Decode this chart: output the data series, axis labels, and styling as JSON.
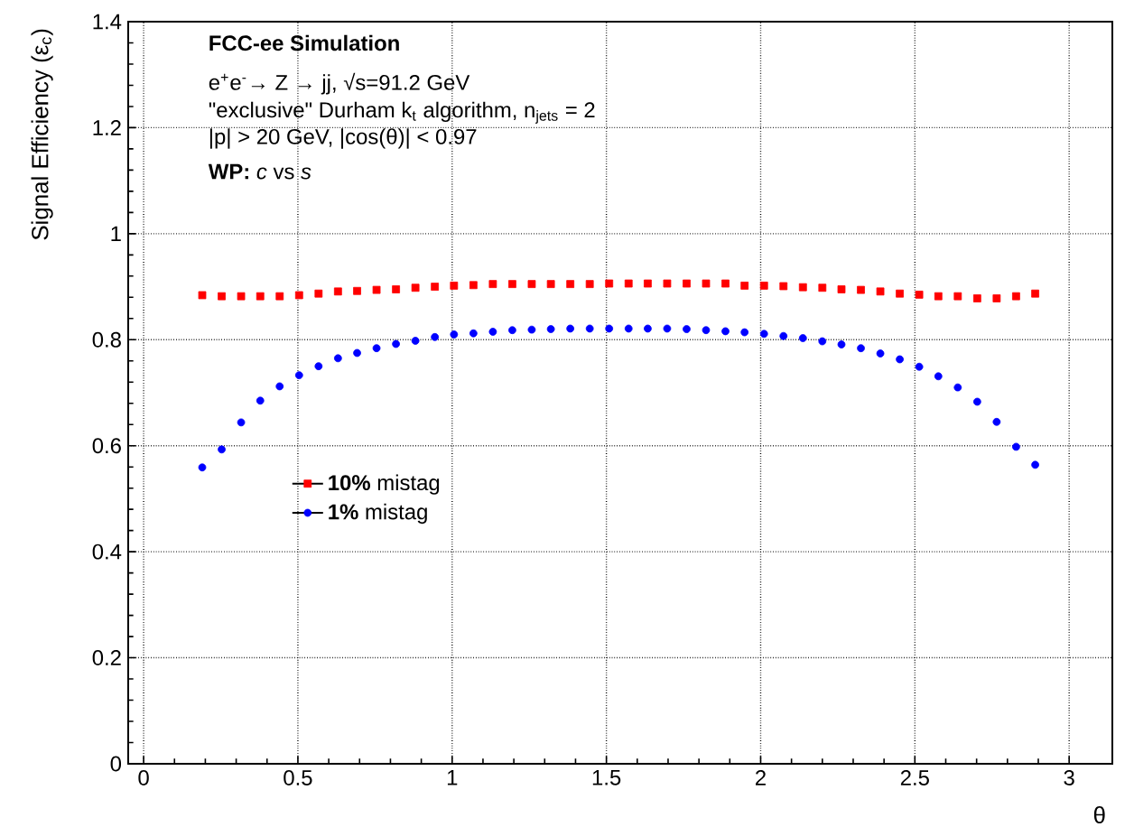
{
  "chart_data": {
    "type": "scatter",
    "title": "FCC-ee Simulation",
    "annotations": [
      "e$^{+}$e$^{-}$→ Z → jj, √s=91.2 GeV",
      "\"exclusive\" Durham k$_{t}$ algorithm, n$_{jets}$ = 2",
      "|p| > 20 GeV, |cos(θ)| < 0.97",
      "**WP:** *c* vs *s*"
    ],
    "xlabel": "θ",
    "ylabel": "Signal Efficiency (ε$_{c}$)",
    "x": [
      0.19,
      0.253,
      0.316,
      0.378,
      0.441,
      0.504,
      0.567,
      0.63,
      0.692,
      0.755,
      0.818,
      0.881,
      0.944,
      1.006,
      1.069,
      1.132,
      1.195,
      1.258,
      1.32,
      1.383,
      1.446,
      1.509,
      1.572,
      1.634,
      1.697,
      1.76,
      1.823,
      1.886,
      1.948,
      2.011,
      2.074,
      2.137,
      2.2,
      2.262,
      2.325,
      2.388,
      2.451,
      2.514,
      2.576,
      2.639,
      2.702,
      2.765,
      2.828,
      2.89
    ],
    "series": [
      {
        "name": "**10%** mistag",
        "color": "#ff0000",
        "marker": "square",
        "values": [
          0.884,
          0.882,
          0.882,
          0.882,
          0.882,
          0.884,
          0.887,
          0.891,
          0.892,
          0.894,
          0.895,
          0.898,
          0.9,
          0.902,
          0.903,
          0.905,
          0.905,
          0.905,
          0.905,
          0.905,
          0.905,
          0.906,
          0.906,
          0.906,
          0.906,
          0.906,
          0.906,
          0.906,
          0.902,
          0.902,
          0.901,
          0.899,
          0.898,
          0.895,
          0.894,
          0.891,
          0.887,
          0.885,
          0.882,
          0.882,
          0.878,
          0.878,
          0.882,
          0.887
        ]
      },
      {
        "name": "**1%** mistag",
        "color": "#0000ff",
        "marker": "circle",
        "values": [
          0.559,
          0.593,
          0.644,
          0.685,
          0.712,
          0.733,
          0.75,
          0.765,
          0.775,
          0.784,
          0.792,
          0.798,
          0.805,
          0.81,
          0.812,
          0.815,
          0.818,
          0.819,
          0.82,
          0.821,
          0.821,
          0.821,
          0.821,
          0.821,
          0.821,
          0.82,
          0.818,
          0.816,
          0.814,
          0.811,
          0.807,
          0.803,
          0.797,
          0.791,
          0.784,
          0.774,
          0.763,
          0.749,
          0.731,
          0.71,
          0.683,
          0.645,
          0.598,
          0.564
        ]
      }
    ],
    "xlim": [
      -0.05,
      3.14
    ],
    "ylim": [
      0,
      1.4
    ],
    "xticks": [
      0,
      0.5,
      1,
      1.5,
      2,
      2.5,
      3
    ],
    "yticks": [
      0,
      0.2,
      0.4,
      0.6,
      0.8,
      1,
      1.2,
      1.4
    ],
    "grid": true,
    "legend": "left"
  }
}
